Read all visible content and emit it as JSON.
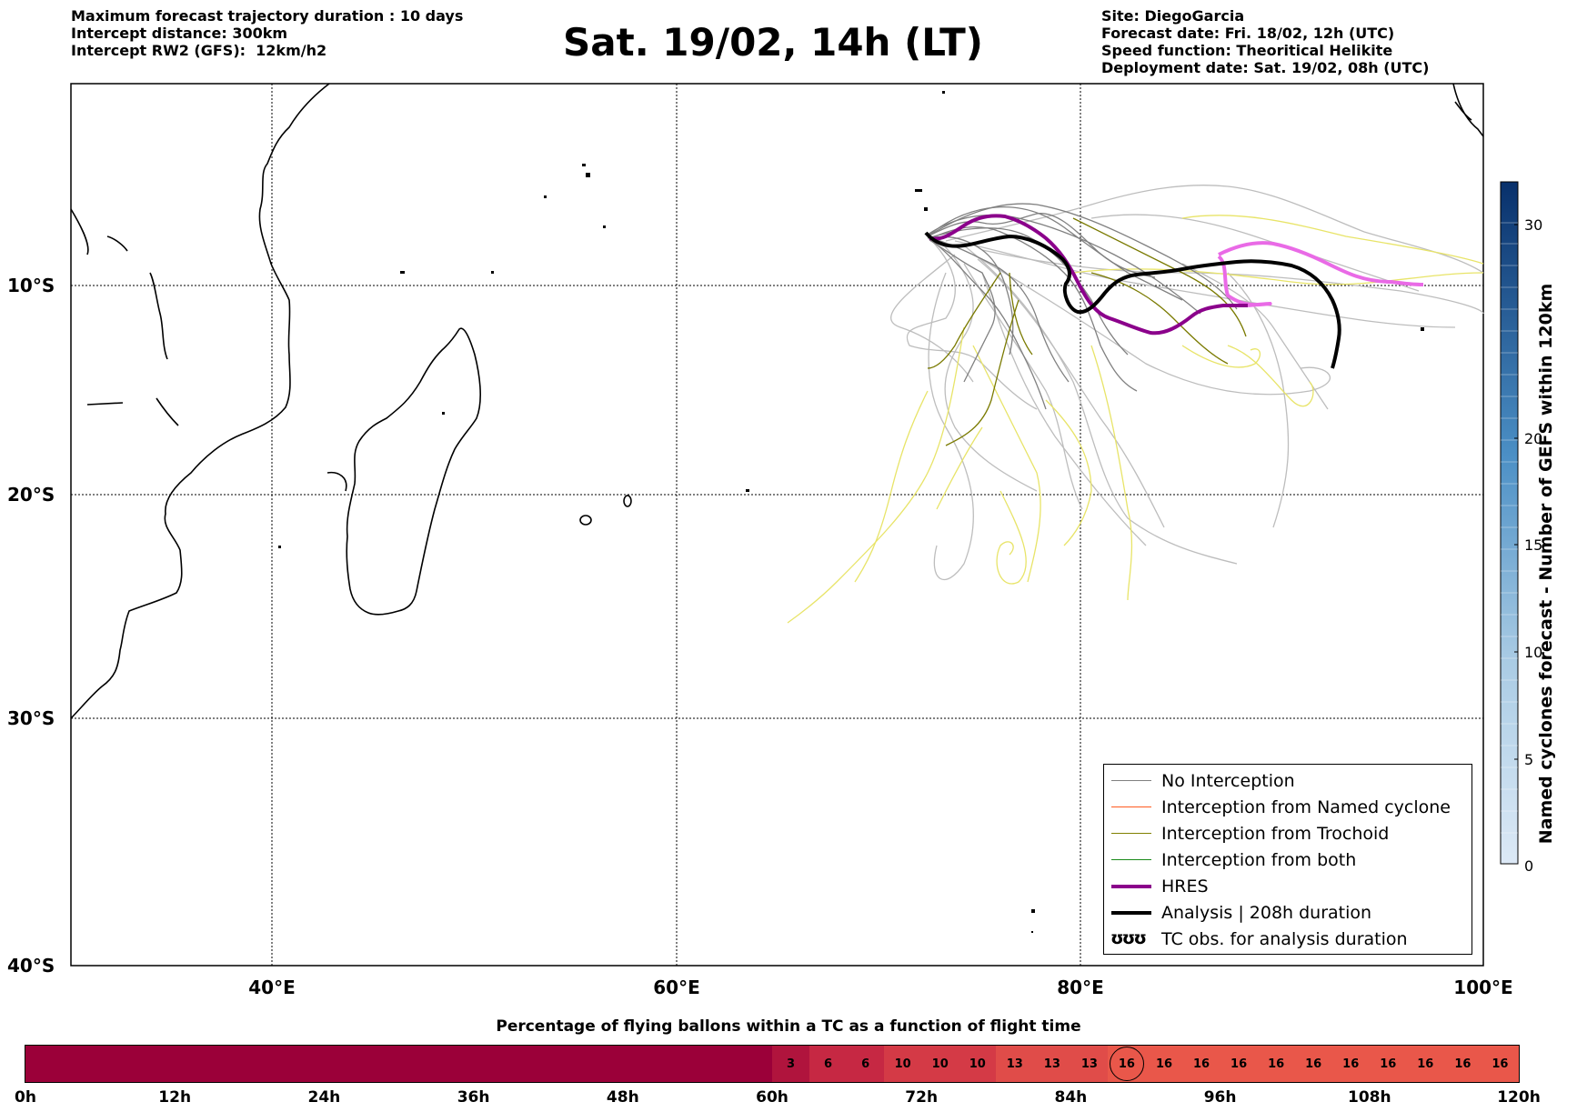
{
  "header_left": [
    "Maximum forecast trajectory duration : 10 days",
    "Intercept distance: 300km",
    "Intercept RW2 (GFS):  12km/h2"
  ],
  "title": "Sat. 19/02, 14h (LT)",
  "header_right": [
    "Site: DiegoGarcia",
    "Forecast date: Fri. 18/02, 12h (UTC)",
    "Speed function: Theoritical Helikite",
    "Deployment date: Sat. 19/02, 08h (UTC)"
  ],
  "map": {
    "lat_labels": [
      "10°S",
      "20°S",
      "30°S",
      "40°S"
    ],
    "lon_labels": [
      "40°E",
      "60°E",
      "80°E",
      "100°E"
    ],
    "extent": {
      "lon_min": 30,
      "lon_max": 100,
      "lat_min": -40,
      "lat_max": 0
    }
  },
  "colorbar": {
    "label": "Named cyclones forecast - Number of GEFS within 120km",
    "ticks": [
      "0",
      "5",
      "10",
      "15",
      "20",
      "30"
    ],
    "min_color": "#dce9f6",
    "max_color": "#08306b"
  },
  "legend": [
    {
      "label": "No Interception",
      "color": "#808080",
      "width": 1.2
    },
    {
      "label": "Interception from Named cyclone",
      "color": "#ff5a1f",
      "width": 1.2
    },
    {
      "label": "Interception from Trochoid",
      "color": "#808000",
      "width": 1.2
    },
    {
      "label": "Interception from both",
      "color": "#1a8a1a",
      "width": 1.2
    },
    {
      "label": "HRES",
      "color": "#8b008b",
      "width": 4
    },
    {
      "label": "Analysis | 208h duration",
      "color": "#000000",
      "width": 4
    },
    {
      "label": "TC obs. for analysis duration",
      "symbol": "ʊʊʊ"
    }
  ],
  "timeline": {
    "title": "Percentage of flying ballons within a TC as a function of flight time",
    "labels": [
      "0h",
      "12h",
      "24h",
      "36h",
      "48h",
      "60h",
      "72h",
      "84h",
      "96h",
      "108h",
      "120h"
    ],
    "base_color": "#9b0039",
    "values": [
      {
        "v": "3",
        "color": "#b0143d"
      },
      {
        "v": "6",
        "color": "#c62843"
      },
      {
        "v": "6",
        "color": "#c62843"
      },
      {
        "v": "10",
        "color": "#d43a46"
      },
      {
        "v": "10",
        "color": "#d43a46"
      },
      {
        "v": "10",
        "color": "#d43a46"
      },
      {
        "v": "13",
        "color": "#e04c49"
      },
      {
        "v": "13",
        "color": "#e04c49"
      },
      {
        "v": "13",
        "color": "#e04c49"
      },
      {
        "v": "16",
        "color": "#e9574a",
        "circled": true
      },
      {
        "v": "16",
        "color": "#e9574a"
      },
      {
        "v": "16",
        "color": "#e9574a"
      },
      {
        "v": "16",
        "color": "#e9574a"
      },
      {
        "v": "16",
        "color": "#e9574a"
      },
      {
        "v": "16",
        "color": "#e9574a"
      },
      {
        "v": "16",
        "color": "#e9574a"
      },
      {
        "v": "16",
        "color": "#e9574a"
      },
      {
        "v": "16",
        "color": "#e9574a"
      },
      {
        "v": "16",
        "color": "#e9574a"
      },
      {
        "v": "16",
        "color": "#e9574a"
      }
    ]
  }
}
